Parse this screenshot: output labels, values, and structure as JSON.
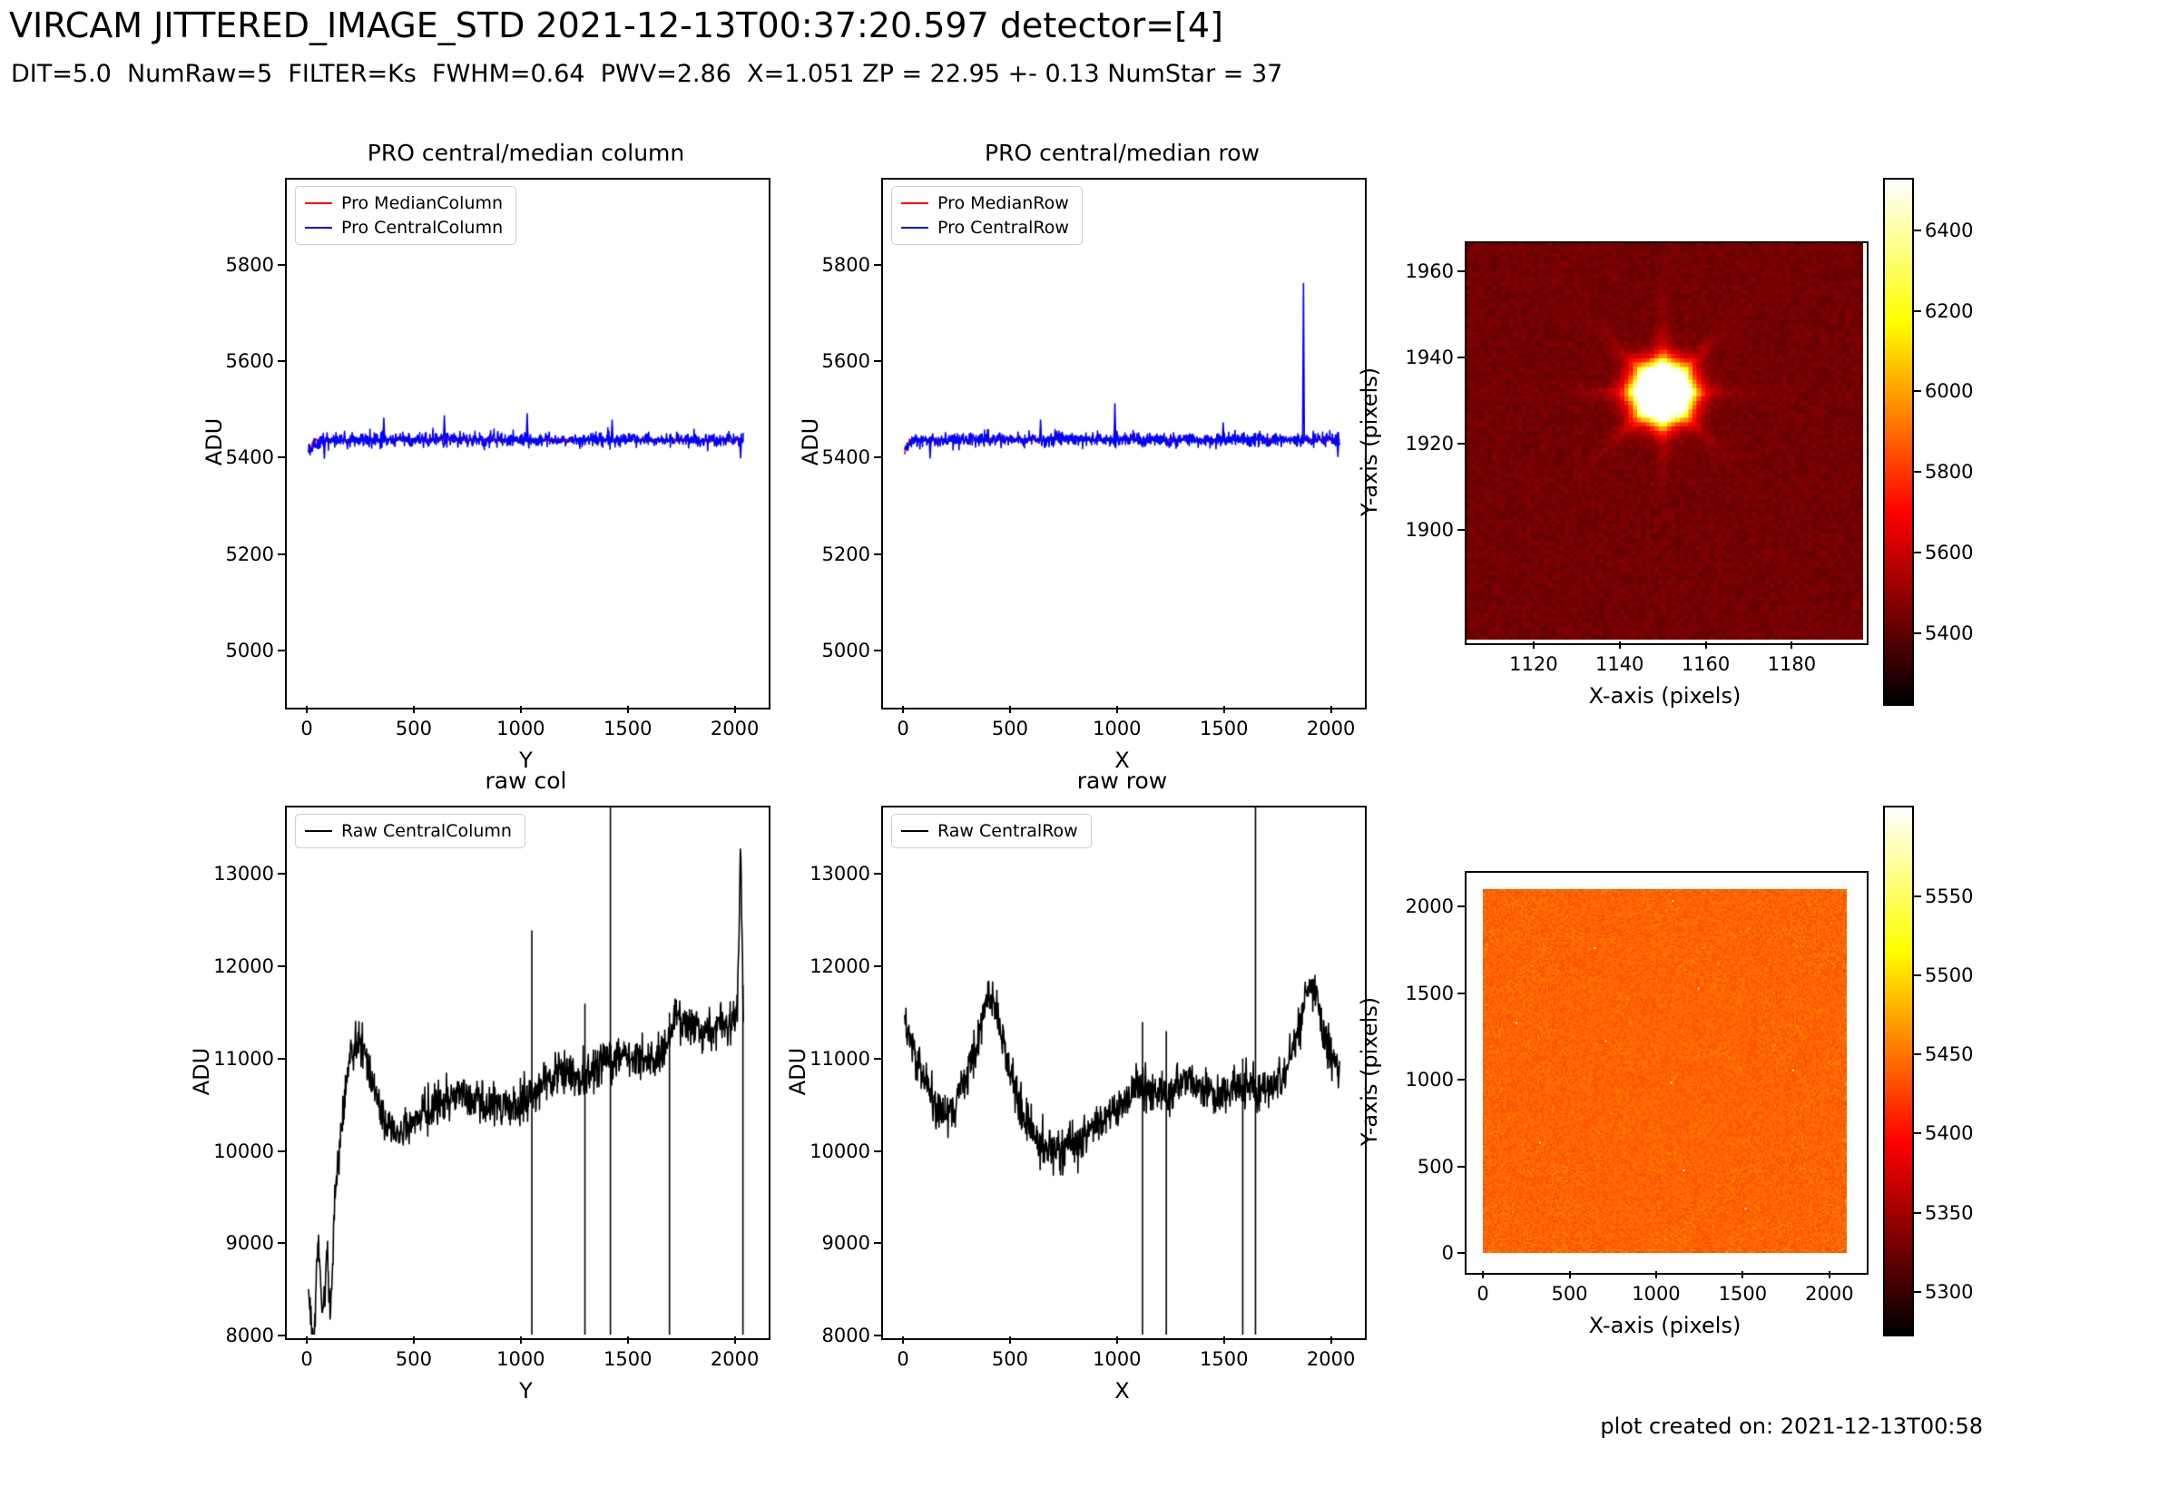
{
  "header": {
    "title": "VIRCAM JITTERED_IMAGE_STD 2021-12-13T00:37:20.597 detector=[4]",
    "subtitle": "DIT=5.0  NumRaw=5  FILTER=Ks  FWHM=0.64  PWV=2.86  X=1.051 ZP = 22.95 +- 0.13 NumStar = 37"
  },
  "footer": {
    "created_note": "plot created on: 2021-12-13T00:58"
  },
  "colors": {
    "background": "#ffffff",
    "axis": "#000000",
    "pro_median": "#ff0000",
    "pro_central": "#0000ff",
    "raw_line": "#000000",
    "colormap": "hot"
  },
  "chart_data": [
    {
      "id": "pro_central_median_column",
      "type": "line",
      "title": "PRO central/median column",
      "xlabel": "Y",
      "ylabel": "ADU",
      "xlim": [
        -102,
        2150
      ],
      "ylim": [
        4885,
        5980
      ],
      "xticks": [
        0,
        500,
        1000,
        1500,
        2000
      ],
      "yticks": [
        5000,
        5200,
        5400,
        5600,
        5800
      ],
      "x_range": [
        0,
        2048
      ],
      "grid": false,
      "legend_loc": "upper left",
      "legend": [
        {
          "label": "Pro MedianColumn",
          "color": "#ff0000"
        },
        {
          "label": "Pro CentralColumn",
          "color": "#0000ff"
        }
      ],
      "series": [
        {
          "name": "Pro MedianColumn",
          "color": "#ff0000",
          "seed": 11,
          "noise": 3,
          "anchors": [
            [
              0,
              5408
            ],
            [
              25,
              5437
            ],
            [
              2048,
              5436
            ]
          ]
        },
        {
          "name": "Pro CentralColumn",
          "color": "#0000ff",
          "seed": 12,
          "noise": 15,
          "anchors": [
            [
              0,
              5420
            ],
            [
              60,
              5436
            ],
            [
              600,
              5439
            ],
            [
              1200,
              5437
            ],
            [
              2048,
              5436
            ]
          ],
          "spikes": [
            [
              75,
              5398
            ],
            [
              355,
              5482
            ],
            [
              640,
              5487
            ],
            [
              1030,
              5491
            ],
            [
              1430,
              5478
            ],
            [
              2035,
              5399
            ]
          ]
        }
      ]
    },
    {
      "id": "pro_central_median_row",
      "type": "line",
      "title": "PRO central/median row",
      "xlabel": "X",
      "ylabel": "ADU",
      "xlim": [
        -102,
        2150
      ],
      "ylim": [
        4885,
        5980
      ],
      "xticks": [
        0,
        500,
        1000,
        1500,
        2000
      ],
      "yticks": [
        5000,
        5200,
        5400,
        5600,
        5800
      ],
      "x_range": [
        0,
        2048
      ],
      "grid": false,
      "legend_loc": "upper left",
      "legend": [
        {
          "label": "Pro MedianRow",
          "color": "#ff0000"
        },
        {
          "label": "Pro CentralRow",
          "color": "#0000ff"
        }
      ],
      "series": [
        {
          "name": "Pro MedianRow",
          "color": "#ff0000",
          "seed": 13,
          "noise": 3,
          "anchors": [
            [
              0,
              5410
            ],
            [
              25,
              5437
            ],
            [
              2048,
              5437
            ]
          ]
        },
        {
          "name": "Pro CentralRow",
          "color": "#0000ff",
          "seed": 14,
          "noise": 15,
          "anchors": [
            [
              0,
              5422
            ],
            [
              60,
              5436
            ],
            [
              700,
              5438
            ],
            [
              1400,
              5437
            ],
            [
              2048,
              5437
            ]
          ],
          "spikes": [
            [
              120,
              5399
            ],
            [
              640,
              5478
            ],
            [
              990,
              5512
            ],
            [
              1500,
              5472
            ],
            [
              1878,
              5763
            ],
            [
              2040,
              5402
            ]
          ]
        }
      ]
    },
    {
      "id": "star_cutout",
      "type": "heatmap",
      "title": "",
      "xlabel": "X-axis (pixels)",
      "ylabel": "Y-axis (pixels)",
      "xlim": [
        1104,
        1197
      ],
      "ylim": [
        1874,
        1967
      ],
      "xticks": [
        1120,
        1140,
        1160,
        1180
      ],
      "yticks": [
        1900,
        1920,
        1940,
        1960
      ],
      "colorbar_ticks": [
        5400,
        5600,
        5800,
        6000,
        6200,
        6400
      ],
      "colorbar_range": [
        5220,
        6530
      ],
      "background_value": 5435,
      "noise": 30,
      "star": {
        "x": 1150,
        "y": 1932,
        "sigma": 4.0,
        "peak_amp": 3500,
        "arm_amp": 620,
        "arm_len": 7
      }
    },
    {
      "id": "raw_col",
      "type": "line",
      "title": "raw col",
      "xlabel": "Y",
      "ylabel": "ADU",
      "xlim": [
        -102,
        2150
      ],
      "ylim": [
        7990,
        13740
      ],
      "xticks": [
        0,
        500,
        1000,
        1500,
        2000
      ],
      "yticks": [
        8000,
        9000,
        10000,
        11000,
        12000,
        13000
      ],
      "x_range": [
        0,
        2048
      ],
      "grid": false,
      "legend_loc": "upper left",
      "legend": [
        {
          "label": "Raw CentralColumn",
          "color": "#000000"
        }
      ],
      "series": [
        {
          "name": "Raw CentralColumn",
          "color": "#000000",
          "seed": 21,
          "noise": 230,
          "anchors": [
            [
              0,
              8500
            ],
            [
              25,
              7800
            ],
            [
              45,
              9100
            ],
            [
              65,
              8100
            ],
            [
              85,
              8900
            ],
            [
              105,
              8300
            ],
            [
              125,
              9500
            ],
            [
              150,
              10100
            ],
            [
              175,
              10700
            ],
            [
              205,
              11100
            ],
            [
              245,
              11200
            ],
            [
              300,
              10700
            ],
            [
              360,
              10300
            ],
            [
              420,
              10150
            ],
            [
              500,
              10350
            ],
            [
              600,
              10500
            ],
            [
              700,
              10600
            ],
            [
              800,
              10550
            ],
            [
              900,
              10450
            ],
            [
              1000,
              10500
            ],
            [
              1100,
              10750
            ],
            [
              1200,
              10850
            ],
            [
              1300,
              10800
            ],
            [
              1400,
              11050
            ],
            [
              1500,
              11050
            ],
            [
              1600,
              10950
            ],
            [
              1680,
              11100
            ],
            [
              1740,
              11500
            ],
            [
              1800,
              11350
            ],
            [
              1860,
              11250
            ],
            [
              1920,
              11400
            ],
            [
              1980,
              11350
            ],
            [
              2020,
              11500
            ],
            [
              2034,
              13350
            ],
            [
              2048,
              11450
            ]
          ],
          "faults": [
            [
              1052,
              12400
            ],
            [
              1302,
              11600
            ],
            [
              1700,
              11500
            ],
            [
              2046,
              11800
            ]
          ],
          "vlines": [
            1422
          ]
        }
      ]
    },
    {
      "id": "raw_row",
      "type": "line",
      "title": "raw row",
      "xlabel": "X",
      "ylabel": "ADU",
      "xlim": [
        -102,
        2150
      ],
      "ylim": [
        7990,
        13740
      ],
      "xticks": [
        0,
        500,
        1000,
        1500,
        2000
      ],
      "yticks": [
        8000,
        9000,
        10000,
        11000,
        12000,
        13000
      ],
      "x_range": [
        0,
        2048
      ],
      "grid": false,
      "legend_loc": "upper left",
      "legend": [
        {
          "label": "Raw CentralRow",
          "color": "#000000"
        }
      ],
      "series": [
        {
          "name": "Raw CentralRow",
          "color": "#000000",
          "seed": 22,
          "noise": 230,
          "anchors": [
            [
              0,
              11550
            ],
            [
              40,
              11100
            ],
            [
              90,
              10800
            ],
            [
              140,
              10500
            ],
            [
              200,
              10350
            ],
            [
              260,
              10600
            ],
            [
              320,
              11000
            ],
            [
              370,
              11500
            ],
            [
              410,
              11700
            ],
            [
              450,
              11350
            ],
            [
              500,
              10800
            ],
            [
              560,
              10350
            ],
            [
              620,
              10100
            ],
            [
              700,
              10000
            ],
            [
              780,
              10050
            ],
            [
              860,
              10200
            ],
            [
              940,
              10350
            ],
            [
              1020,
              10500
            ],
            [
              1100,
              10750
            ],
            [
              1180,
              10600
            ],
            [
              1260,
              10650
            ],
            [
              1340,
              10800
            ],
            [
              1420,
              10650
            ],
            [
              1500,
              10600
            ],
            [
              1580,
              10700
            ],
            [
              1660,
              10650
            ],
            [
              1740,
              10700
            ],
            [
              1800,
              10900
            ],
            [
              1850,
              11300
            ],
            [
              1900,
              11800
            ],
            [
              1940,
              11700
            ],
            [
              1980,
              11200
            ],
            [
              2020,
              10950
            ],
            [
              2048,
              10900
            ]
          ],
          "faults": [
            [
              1120,
              11400
            ],
            [
              1232,
              11300
            ],
            [
              1592,
              11000
            ]
          ],
          "vlines": [
            1652
          ]
        }
      ]
    },
    {
      "id": "full_frame",
      "type": "heatmap",
      "title": "",
      "xlabel": "X-axis (pixels)",
      "ylabel": "Y-axis (pixels)",
      "xlim": [
        -105,
        2205
      ],
      "ylim": [
        -105,
        2205
      ],
      "extent": [
        0,
        2100
      ],
      "xticks": [
        0,
        500,
        1000,
        1500,
        2000
      ],
      "yticks": [
        0,
        500,
        1000,
        1500,
        2000
      ],
      "colorbar_ticks": [
        5300,
        5350,
        5400,
        5450,
        5500,
        5550
      ],
      "colorbar_range": [
        5272,
        5607
      ],
      "background_value": 5442,
      "noise": 11,
      "bright_dots": [
        [
          1090,
          2040
        ],
        [
          640,
          1760
        ],
        [
          1240,
          1530
        ],
        [
          190,
          1330
        ],
        [
          700,
          1230
        ],
        [
          1790,
          1060
        ],
        [
          1080,
          990
        ],
        [
          1160,
          480
        ],
        [
          1510,
          260
        ],
        [
          330,
          640
        ]
      ]
    }
  ]
}
